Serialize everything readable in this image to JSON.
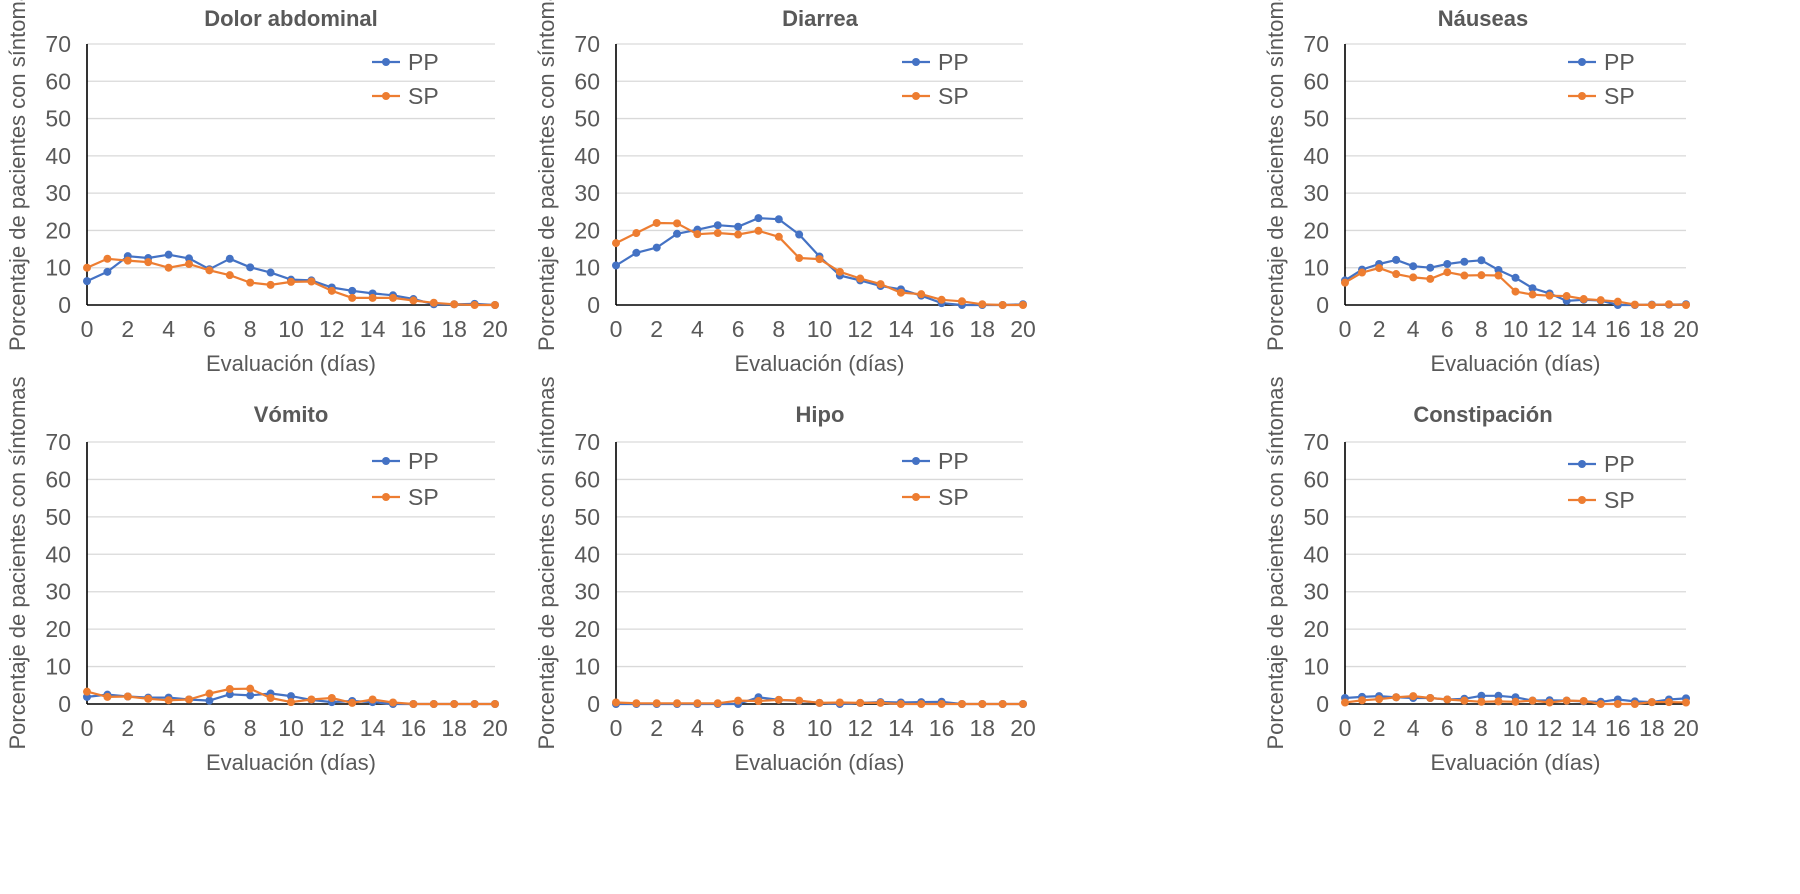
{
  "figure": {
    "series_colors": {
      "PP": "#4472C4",
      "SP": "#ED7D31"
    },
    "gridline_color": "#D9D9D9",
    "text_color": "#595959"
  },
  "chart_data": [
    {
      "type": "line",
      "title": "Dolor abdominal",
      "xlabel": "Evaluación (días)",
      "ylabel": "Porcentaje de pacientes con síntomas",
      "xlim": [
        0,
        20
      ],
      "ylim": [
        0,
        70
      ],
      "xticks": [
        "0",
        "2",
        "4",
        "6",
        "8",
        "10",
        "12",
        "14",
        "16",
        "18",
        "20"
      ],
      "yticks": [
        "0",
        "10",
        "20",
        "30",
        "40",
        "50",
        "60",
        "70"
      ],
      "grid": true,
      "legend": "top-right",
      "x": [
        0,
        1,
        2,
        3,
        4,
        5,
        6,
        7,
        8,
        9,
        10,
        11,
        12,
        13,
        14,
        15,
        16,
        17,
        18,
        19,
        20
      ],
      "series": [
        {
          "name": "PP",
          "color": "#4472C4",
          "values": [
            6.4,
            8.9,
            13.1,
            12.6,
            13.5,
            12.5,
            9.6,
            12.4,
            10.1,
            8.7,
            6.8,
            6.6,
            4.7,
            3.8,
            3.1,
            2.6,
            1.6,
            0.2,
            0.2,
            0.3,
            0
          ]
        },
        {
          "name": "SP",
          "color": "#ED7D31",
          "values": [
            10.0,
            12.4,
            11.9,
            11.5,
            10.0,
            11.0,
            9.3,
            8.0,
            6.0,
            5.4,
            6.2,
            6.3,
            3.8,
            1.9,
            1.9,
            1.9,
            1.2,
            0.6,
            0.2,
            0,
            0
          ]
        }
      ]
    },
    {
      "type": "line",
      "title": "Diarrea",
      "xlabel": "Evaluación (días)",
      "ylabel": "Porcentaje de pacientes con síntomas",
      "xlim": [
        0,
        20
      ],
      "ylim": [
        0,
        70
      ],
      "xticks": [
        "0",
        "2",
        "4",
        "6",
        "8",
        "10",
        "12",
        "14",
        "16",
        "18",
        "20"
      ],
      "yticks": [
        "0",
        "10",
        "20",
        "30",
        "40",
        "50",
        "60",
        "70"
      ],
      "grid": true,
      "legend": "top-right",
      "x": [
        0,
        1,
        2,
        3,
        4,
        5,
        6,
        7,
        8,
        9,
        10,
        11,
        12,
        13,
        14,
        15,
        16,
        17,
        18,
        19,
        20
      ],
      "series": [
        {
          "name": "PP",
          "color": "#4472C4",
          "values": [
            10.6,
            14.0,
            15.4,
            19.1,
            20.2,
            21.4,
            21.0,
            23.3,
            23.0,
            18.9,
            13.0,
            7.9,
            6.6,
            5.1,
            4.2,
            2.5,
            0.5,
            0,
            0,
            0,
            0.2
          ]
        },
        {
          "name": "SP",
          "color": "#ED7D31",
          "values": [
            16.6,
            19.3,
            22.0,
            21.9,
            19.0,
            19.3,
            18.9,
            19.9,
            18.3,
            12.6,
            12.3,
            8.9,
            7.1,
            5.6,
            3.3,
            2.9,
            1.4,
            1.0,
            0.2,
            0,
            0
          ]
        }
      ]
    },
    {
      "type": "line",
      "title": "Náuseas",
      "xlabel": "Evaluación (días)",
      "ylabel": "Porcentaje de pacientes con síntomas",
      "xlim": [
        0,
        20
      ],
      "ylim": [
        0,
        70
      ],
      "xticks": [
        "0",
        "2",
        "4",
        "6",
        "8",
        "10",
        "12",
        "14",
        "16",
        "18",
        "20"
      ],
      "yticks": [
        "0",
        "10",
        "20",
        "30",
        "40",
        "50",
        "60",
        "70"
      ],
      "grid": true,
      "legend": "top-right",
      "x": [
        0,
        1,
        2,
        3,
        4,
        5,
        6,
        7,
        8,
        9,
        10,
        11,
        12,
        13,
        14,
        15,
        16,
        17,
        18,
        19,
        20
      ],
      "series": [
        {
          "name": "PP",
          "color": "#4472C4",
          "values": [
            6.6,
            9.5,
            11.0,
            12.1,
            10.4,
            10.0,
            11.0,
            11.6,
            12.0,
            9.4,
            7.3,
            4.5,
            3.1,
            1.1,
            1.4,
            1.2,
            0,
            0,
            0.1,
            0.1,
            0.2
          ]
        },
        {
          "name": "SP",
          "color": "#ED7D31",
          "values": [
            6.0,
            8.7,
            9.9,
            8.3,
            7.4,
            7.0,
            8.8,
            7.9,
            8.0,
            7.9,
            3.6,
            2.8,
            2.5,
            2.4,
            1.6,
            1.3,
            0.9,
            0.1,
            0,
            0.2,
            0
          ]
        }
      ]
    },
    {
      "type": "line",
      "title": "Vómito",
      "xlabel": "Evaluación (días)",
      "ylabel": "Porcentaje de pacientes con síntomas",
      "xlim": [
        0,
        20
      ],
      "ylim": [
        0,
        70
      ],
      "xticks": [
        "0",
        "2",
        "4",
        "6",
        "8",
        "10",
        "12",
        "14",
        "16",
        "18",
        "20"
      ],
      "yticks": [
        "0",
        "10",
        "20",
        "30",
        "40",
        "50",
        "60",
        "70"
      ],
      "grid": true,
      "legend": "top-right",
      "x": [
        0,
        1,
        2,
        3,
        4,
        5,
        6,
        7,
        8,
        9,
        10,
        11,
        12,
        13,
        14,
        15,
        16,
        17,
        18,
        19,
        20
      ],
      "series": [
        {
          "name": "PP",
          "color": "#4472C4",
          "values": [
            1.9,
            2.5,
            2.0,
            1.7,
            1.7,
            1.2,
            0.9,
            2.6,
            2.3,
            2.8,
            2.1,
            1.1,
            0.5,
            0.8,
            0.5,
            0,
            0,
            0,
            0,
            0,
            0
          ]
        },
        {
          "name": "SP",
          "color": "#ED7D31",
          "values": [
            3.3,
            1.9,
            2.0,
            1.4,
            1.0,
            1.2,
            2.8,
            4.0,
            4.1,
            1.6,
            0.5,
            1.2,
            1.6,
            0.3,
            1.2,
            0.4,
            0,
            0,
            0,
            0,
            0
          ]
        }
      ]
    },
    {
      "type": "line",
      "title": "Hipo",
      "xlabel": "Evaluación (días)",
      "ylabel": "Porcentaje de pacientes con síntomas",
      "xlim": [
        0,
        20
      ],
      "ylim": [
        0,
        70
      ],
      "xticks": [
        "0",
        "2",
        "4",
        "6",
        "8",
        "10",
        "12",
        "14",
        "16",
        "18",
        "20"
      ],
      "yticks": [
        "0",
        "10",
        "20",
        "30",
        "40",
        "50",
        "60",
        "70"
      ],
      "grid": true,
      "legend": "top-right",
      "x": [
        0,
        1,
        2,
        3,
        4,
        5,
        6,
        7,
        8,
        9,
        10,
        11,
        12,
        13,
        14,
        15,
        16,
        17,
        18,
        19,
        20
      ],
      "series": [
        {
          "name": "PP",
          "color": "#4472C4",
          "values": [
            0,
            0,
            0,
            0,
            0,
            0,
            0,
            1.8,
            1.1,
            0.8,
            0.3,
            0,
            0.3,
            0.5,
            0.4,
            0.5,
            0.6,
            0,
            0,
            0,
            0
          ]
        },
        {
          "name": "SP",
          "color": "#ED7D31",
          "values": [
            0.4,
            0.2,
            0.2,
            0.2,
            0.2,
            0.2,
            0.9,
            0.8,
            1.1,
            0.9,
            0.3,
            0.4,
            0.3,
            0.3,
            0,
            0,
            0,
            0,
            0,
            0,
            0
          ]
        }
      ]
    },
    {
      "type": "line",
      "title": "Constipación",
      "xlabel": "Evaluación (días)",
      "ylabel": "Porcentaje de pacientes con síntomas",
      "xlim": [
        0,
        20
      ],
      "ylim": [
        0,
        70
      ],
      "xticks": [
        "0",
        "2",
        "4",
        "6",
        "8",
        "10",
        "12",
        "14",
        "16",
        "18",
        "20"
      ],
      "yticks": [
        "0",
        "10",
        "20",
        "30",
        "40",
        "50",
        "60",
        "70"
      ],
      "grid": true,
      "legend": "top-right",
      "x": [
        0,
        1,
        2,
        3,
        4,
        5,
        6,
        7,
        8,
        9,
        10,
        11,
        12,
        13,
        14,
        15,
        16,
        17,
        18,
        19,
        20
      ],
      "series": [
        {
          "name": "PP",
          "color": "#4472C4",
          "values": [
            1.6,
            1.9,
            2.1,
            1.8,
            1.6,
            1.6,
            1.2,
            1.4,
            2.2,
            2.2,
            1.8,
            0.9,
            1.0,
            0.9,
            0.7,
            0.6,
            1.2,
            0.7,
            0.5,
            1.2,
            1.5
          ]
        },
        {
          "name": "SP",
          "color": "#ED7D31",
          "values": [
            0.4,
            1.0,
            1.3,
            1.8,
            2.1,
            1.6,
            1.2,
            0.9,
            0.6,
            0.7,
            0.6,
            0.9,
            0.4,
            0.9,
            0.8,
            0,
            0,
            0,
            0.5,
            0.5,
            0.4
          ]
        }
      ]
    }
  ]
}
